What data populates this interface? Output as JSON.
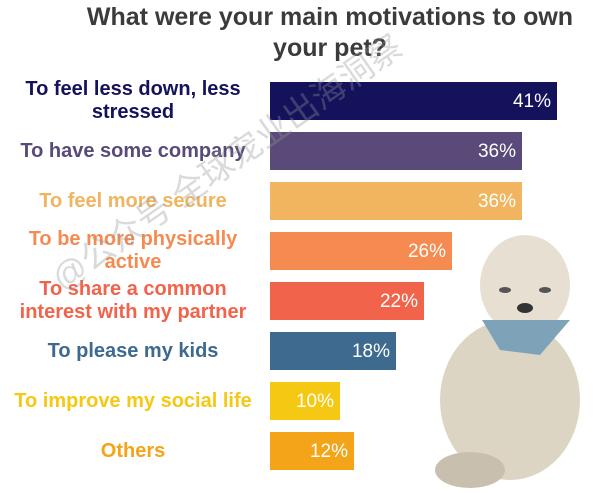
{
  "chart_data": {
    "type": "bar",
    "orientation": "horizontal",
    "title": "What were your main motivations to own your pet?",
    "categories": [
      "To feel less down, less stressed",
      "To have some company",
      "To feel more secure",
      "To be more physically active",
      "To share a common interest with my partner",
      "To please my kids",
      "To improve my social life",
      "Others"
    ],
    "values": [
      41,
      36,
      36,
      26,
      22,
      18,
      10,
      12
    ],
    "value_labels": [
      "41%",
      "36%",
      "36%",
      "26%",
      "22%",
      "18%",
      "10%",
      "12%"
    ],
    "colors": [
      "#15125c",
      "#5a4a79",
      "#f0b55e",
      "#f58b50",
      "#f1634b",
      "#3d6a8e",
      "#f5c814",
      "#f4a418"
    ],
    "watermark": "@公众号 全球宠业出海洞察"
  }
}
